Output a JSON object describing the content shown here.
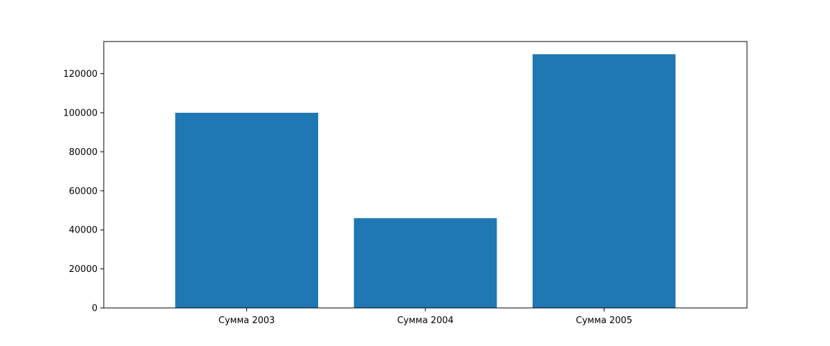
{
  "chart_data": {
    "type": "bar",
    "categories": [
      "Сумма 2003",
      "Сумма 2004",
      "Сумма 2005"
    ],
    "values": [
      100000,
      46000,
      130000
    ],
    "title": "",
    "xlabel": "",
    "ylabel": "",
    "ylim": [
      0,
      136500
    ],
    "yticks": [
      0,
      20000,
      40000,
      60000,
      80000,
      100000,
      120000
    ],
    "bar_color": "#1f77b4",
    "grid": false,
    "legend": "none"
  }
}
